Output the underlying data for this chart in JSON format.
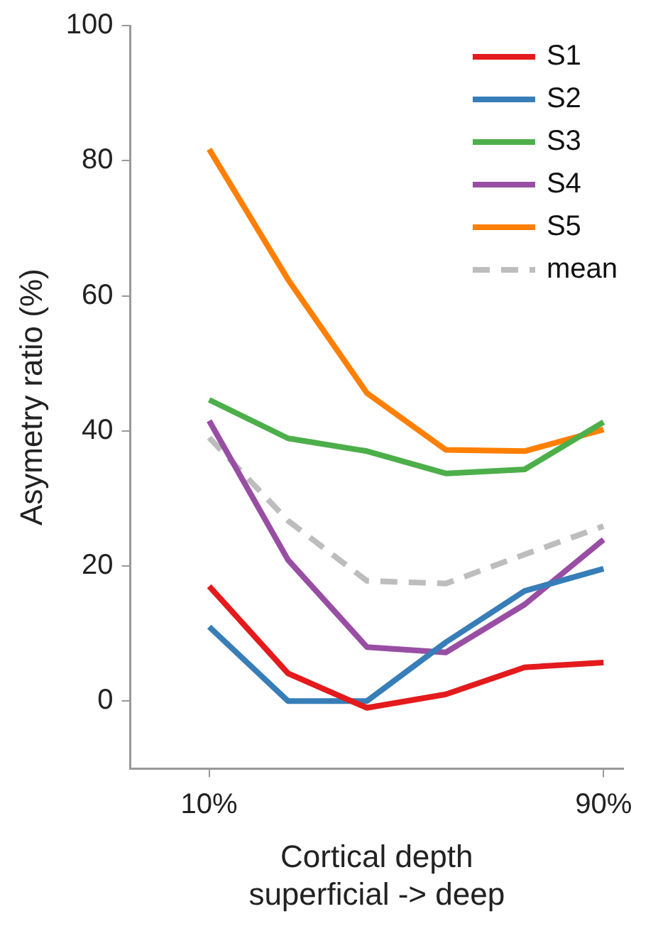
{
  "chart_data": {
    "type": "line",
    "xlabel": "Cortical depth\nsuperficial -> deep",
    "ylabel": "Asymetry ratio (%)",
    "x": [
      10,
      26,
      42,
      58,
      74,
      90
    ],
    "xlim": [
      -6,
      94
    ],
    "xticks": [
      {
        "value": 10,
        "label": "10%"
      },
      {
        "value": 90,
        "label": "90%"
      }
    ],
    "ylim": [
      -10,
      100
    ],
    "yticks": [
      0,
      20,
      40,
      60,
      80,
      100
    ],
    "grid": false,
    "legend": "top right",
    "marker": "none",
    "series": [
      {
        "name": "S1",
        "color": "#e41a1c",
        "values": [
          17,
          4.1,
          -1,
          1,
          5,
          5.7
        ]
      },
      {
        "name": "S2",
        "color": "#377eb8",
        "values": [
          11,
          0,
          0,
          8.7,
          16.3,
          19.6
        ]
      },
      {
        "name": "S3",
        "color": "#4daf4a",
        "values": [
          44.6,
          38.9,
          37,
          33.7,
          34.3,
          41.3
        ]
      },
      {
        "name": "S4",
        "color": "#984ea3",
        "values": [
          41.5,
          20.9,
          8,
          7.2,
          14.3,
          23.9
        ]
      },
      {
        "name": "S5",
        "color": "#ff7f00",
        "values": [
          81.7,
          62.4,
          45.6,
          37.2,
          37,
          40.2
        ]
      },
      {
        "name": "mean",
        "color": "#bdbdbd",
        "line_style": "dashed",
        "values": [
          39,
          26.7,
          17.8,
          17.4,
          21.7,
          25.9
        ]
      }
    ]
  }
}
